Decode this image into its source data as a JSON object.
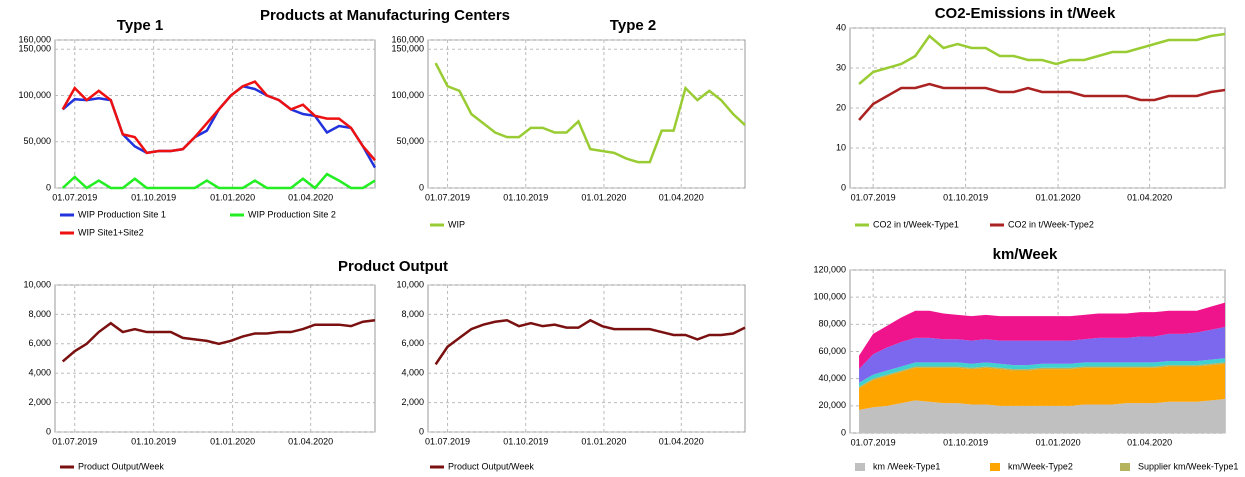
{
  "headings": [
    "Products at Manufacturing Centers",
    "Product Output"
  ],
  "chart_data": [
    {
      "type": "line",
      "title": "Type 1",
      "x": [
        "17.06.2019",
        "01.07.2019",
        "15.07.2019",
        "29.07.2019",
        "12.08.2019",
        "26.08.2019",
        "09.09.2019",
        "23.09.2019",
        "07.10.2019",
        "21.10.2019",
        "04.11.2019",
        "18.11.2019",
        "02.12.2019",
        "16.12.2019",
        "30.12.2019",
        "13.01.2020",
        "27.01.2020",
        "10.02.2020",
        "24.02.2020",
        "09.03.2020",
        "23.03.2020",
        "06.04.2020",
        "20.04.2020",
        "04.05.2020",
        "18.05.2020",
        "01.06.2020",
        "15.06.2020"
      ],
      "xlim": [
        "08.06.2019",
        "15.06.2020"
      ],
      "xticks": [
        "01.07.2019",
        "01.10.2019",
        "01.01.2020",
        "01.04.2020"
      ],
      "ylim": [
        0,
        160000
      ],
      "yticks": [
        0,
        {
          "value": 50000,
          "label": "50,000"
        },
        {
          "value": 100000,
          "label": "100,000"
        },
        {
          "value": 150000,
          "label": "150,000"
        },
        {
          "value": 160000,
          "label": "160,000"
        }
      ],
      "grid": true,
      "series": [
        {
          "name": "WIP Production Site 1",
          "color": "#2233dd",
          "values": [
            85000,
            96000,
            95000,
            97000,
            95000,
            58000,
            45000,
            38000,
            40000,
            40000,
            42000,
            55000,
            62000,
            85000,
            100000,
            110000,
            107000,
            100000,
            95000,
            85000,
            80000,
            78000,
            60000,
            67000,
            65000,
            45000,
            22000
          ]
        },
        {
          "name": "WIP Production Site 2",
          "color": "#22ee22",
          "values": [
            0,
            12000,
            0,
            8000,
            0,
            0,
            10000,
            0,
            0,
            0,
            0,
            0,
            8000,
            0,
            0,
            0,
            8000,
            0,
            0,
            0,
            10000,
            0,
            15000,
            8000,
            0,
            0,
            8000
          ]
        },
        {
          "name": "WIP Site1+Site2",
          "color": "#ee1111",
          "values": [
            85000,
            108000,
            95000,
            105000,
            95000,
            58000,
            55000,
            38000,
            40000,
            40000,
            42000,
            55000,
            70000,
            85000,
            100000,
            110000,
            115000,
            100000,
            95000,
            85000,
            90000,
            78000,
            75000,
            75000,
            65000,
            45000,
            30000
          ]
        }
      ]
    },
    {
      "type": "line",
      "title": "Type 2",
      "x": [
        "17.06.2019",
        "01.07.2019",
        "15.07.2019",
        "29.07.2019",
        "12.08.2019",
        "26.08.2019",
        "09.09.2019",
        "23.09.2019",
        "07.10.2019",
        "21.10.2019",
        "04.11.2019",
        "18.11.2019",
        "02.12.2019",
        "16.12.2019",
        "30.12.2019",
        "13.01.2020",
        "27.01.2020",
        "10.02.2020",
        "24.02.2020",
        "09.03.2020",
        "23.03.2020",
        "06.04.2020",
        "20.04.2020",
        "04.05.2020",
        "18.05.2020",
        "01.06.2020",
        "15.06.2020"
      ],
      "xlim": [
        "08.06.2019",
        "15.06.2020"
      ],
      "xticks": [
        "01.07.2019",
        "01.10.2019",
        "01.01.2020",
        "01.04.2020"
      ],
      "ylim": [
        0,
        160000
      ],
      "yticks": [
        0,
        {
          "value": 50000,
          "label": "50,000"
        },
        {
          "value": 100000,
          "label": "100,000"
        },
        {
          "value": 150000,
          "label": "150,000"
        },
        {
          "value": 160000,
          "label": "160,000"
        }
      ],
      "grid": true,
      "series": [
        {
          "name": "WIP",
          "color": "#99cc33",
          "values": [
            135000,
            110000,
            105000,
            80000,
            70000,
            60000,
            55000,
            55000,
            65000,
            65000,
            60000,
            60000,
            72000,
            42000,
            40000,
            38000,
            32000,
            28000,
            28000,
            62000,
            62000,
            108000,
            95000,
            105000,
            95000,
            80000,
            68000
          ]
        }
      ]
    },
    {
      "type": "line",
      "title": "CO2-Emissions in t/Week",
      "x": [
        "17.06.2019",
        "01.07.2019",
        "15.07.2019",
        "29.07.2019",
        "12.08.2019",
        "26.08.2019",
        "09.09.2019",
        "23.09.2019",
        "07.10.2019",
        "21.10.2019",
        "04.11.2019",
        "18.11.2019",
        "02.12.2019",
        "16.12.2019",
        "30.12.2019",
        "13.01.2020",
        "27.01.2020",
        "10.02.2020",
        "24.02.2020",
        "09.03.2020",
        "23.03.2020",
        "06.04.2020",
        "20.04.2020",
        "04.05.2020",
        "18.05.2020",
        "01.06.2020",
        "15.06.2020"
      ],
      "xlim": [
        "08.06.2019",
        "15.06.2020"
      ],
      "xticks": [
        "01.07.2019",
        "01.10.2019",
        "01.01.2020",
        "01.04.2020"
      ],
      "ylim": [
        0,
        40
      ],
      "yticks": [
        0,
        10,
        20,
        30,
        40
      ],
      "grid": true,
      "series": [
        {
          "name": "CO2 in t/Week-Type1",
          "color": "#99cc33",
          "values": [
            26,
            29,
            30,
            31,
            33,
            38,
            35,
            36,
            35,
            35,
            33,
            33,
            32,
            32,
            31,
            32,
            32,
            33,
            34,
            34,
            35,
            36,
            37,
            37,
            37,
            38,
            38.5
          ]
        },
        {
          "name": "CO2 in t/Week-Type2",
          "color": "#aa2222",
          "values": [
            17,
            21,
            23,
            25,
            25,
            26,
            25,
            25,
            25,
            25,
            24,
            24,
            25,
            24,
            24,
            24,
            23,
            23,
            23,
            23,
            22,
            22,
            23,
            23,
            23,
            24,
            24.5
          ]
        }
      ]
    },
    {
      "type": "line",
      "x": [
        "17.06.2019",
        "01.07.2019",
        "15.07.2019",
        "29.07.2019",
        "12.08.2019",
        "26.08.2019",
        "09.09.2019",
        "23.09.2019",
        "07.10.2019",
        "21.10.2019",
        "04.11.2019",
        "18.11.2019",
        "02.12.2019",
        "16.12.2019",
        "30.12.2019",
        "13.01.2020",
        "27.01.2020",
        "10.02.2020",
        "24.02.2020",
        "09.03.2020",
        "23.03.2020",
        "06.04.2020",
        "20.04.2020",
        "04.05.2020",
        "18.05.2020",
        "01.06.2020",
        "15.06.2020"
      ],
      "xlim": [
        "08.06.2019",
        "15.06.2020"
      ],
      "xticks": [
        "01.07.2019",
        "01.10.2019",
        "01.01.2020",
        "01.04.2020"
      ],
      "ylim": [
        0,
        10000
      ],
      "yticks": [
        0,
        {
          "value": 2000,
          "label": "2,000"
        },
        {
          "value": 4000,
          "label": "4,000"
        },
        {
          "value": 6000,
          "label": "6,000"
        },
        {
          "value": 8000,
          "label": "8,000"
        },
        {
          "value": 10000,
          "label": "10,000"
        }
      ],
      "grid": true,
      "series": [
        {
          "name": "Product Output/Week",
          "color": "#7a1010",
          "values": [
            4800,
            5500,
            6000,
            6800,
            7400,
            6800,
            7000,
            6800,
            6800,
            6800,
            6400,
            6300,
            6200,
            6000,
            6200,
            6500,
            6700,
            6700,
            6800,
            6800,
            7000,
            7300,
            7300,
            7300,
            7200,
            7500,
            7600
          ]
        }
      ]
    },
    {
      "type": "line",
      "x": [
        "17.06.2019",
        "01.07.2019",
        "15.07.2019",
        "29.07.2019",
        "12.08.2019",
        "26.08.2019",
        "09.09.2019",
        "23.09.2019",
        "07.10.2019",
        "21.10.2019",
        "04.11.2019",
        "18.11.2019",
        "02.12.2019",
        "16.12.2019",
        "30.12.2019",
        "13.01.2020",
        "27.01.2020",
        "10.02.2020",
        "24.02.2020",
        "09.03.2020",
        "23.03.2020",
        "06.04.2020",
        "20.04.2020",
        "04.05.2020",
        "18.05.2020",
        "01.06.2020",
        "15.06.2020"
      ],
      "xlim": [
        "08.06.2019",
        "15.06.2020"
      ],
      "xticks": [
        "01.07.2019",
        "01.10.2019",
        "01.01.2020",
        "01.04.2020"
      ],
      "ylim": [
        0,
        10000
      ],
      "yticks": [
        0,
        {
          "value": 2000,
          "label": "2,000"
        },
        {
          "value": 4000,
          "label": "4,000"
        },
        {
          "value": 6000,
          "label": "6,000"
        },
        {
          "value": 8000,
          "label": "8,000"
        },
        {
          "value": 10000,
          "label": "10,000"
        }
      ],
      "grid": true,
      "series": [
        {
          "name": "Product Output/Week",
          "color": "#7a1010",
          "values": [
            4600,
            5800,
            6400,
            7000,
            7300,
            7500,
            7600,
            7200,
            7400,
            7200,
            7300,
            7100,
            7100,
            7600,
            7200,
            7000,
            7000,
            7000,
            7000,
            6800,
            6600,
            6600,
            6300,
            6600,
            6600,
            6700,
            7100
          ]
        }
      ]
    },
    {
      "type": "stacked_area",
      "title": "km/Week",
      "x": [
        "17.06.2019",
        "01.07.2019",
        "15.07.2019",
        "29.07.2019",
        "12.08.2019",
        "26.08.2019",
        "09.09.2019",
        "23.09.2019",
        "07.10.2019",
        "21.10.2019",
        "04.11.2019",
        "18.11.2019",
        "02.12.2019",
        "16.12.2019",
        "30.12.2019",
        "13.01.2020",
        "27.01.2020",
        "10.02.2020",
        "24.02.2020",
        "09.03.2020",
        "23.03.2020",
        "06.04.2020",
        "20.04.2020",
        "04.05.2020",
        "18.05.2020",
        "01.06.2020",
        "15.06.2020"
      ],
      "xlim": [
        "08.06.2019",
        "15.06.2020"
      ],
      "xticks": [
        "01.07.2019",
        "01.10.2019",
        "01.01.2020",
        "01.04.2020"
      ],
      "ylim": [
        0,
        120000
      ],
      "yticks": [
        0,
        {
          "value": 20000,
          "label": "20,000"
        },
        {
          "value": 40000,
          "label": "40,000"
        },
        {
          "value": 60000,
          "label": "60,000"
        },
        {
          "value": 80000,
          "label": "80,000"
        },
        {
          "value": 100000,
          "label": "100,000"
        },
        {
          "value": 120000,
          "label": "120,000"
        }
      ],
      "grid": true,
      "series": [
        {
          "name": "km /Week-Type1",
          "color": "#c0c0c0",
          "values": [
            17000,
            19000,
            20000,
            22000,
            24000,
            23000,
            22000,
            22000,
            21000,
            21000,
            20000,
            20000,
            20000,
            20000,
            20000,
            20000,
            21000,
            21000,
            21000,
            22000,
            22000,
            22000,
            23000,
            23000,
            23000,
            24000,
            25000
          ]
        },
        {
          "name": "km/Week-Type2",
          "color": "#ffa500",
          "values": [
            16000,
            20000,
            22000,
            23000,
            24000,
            25000,
            26000,
            26000,
            26000,
            27000,
            27000,
            26000,
            26000,
            27000,
            27000,
            27000,
            27000,
            27000,
            27000,
            26000,
            26000,
            26000,
            26000,
            26000,
            26000,
            26000,
            26000
          ]
        },
        {
          "name": "Supplier km/Week-Type1",
          "color": "#b5b35c",
          "values": [
            1000,
            1000,
            1000,
            1000,
            1000,
            1000,
            1000,
            1000,
            1000,
            1000,
            1000,
            1000,
            1000,
            1000,
            1000,
            1000,
            1000,
            1000,
            1000,
            1000,
            1000,
            1000,
            1000,
            1000,
            1000,
            1000,
            1000
          ]
        },
        {
          "color": "#40d0d0",
          "values": [
            3000,
            3000,
            3000,
            3000,
            3000,
            3000,
            3000,
            3000,
            3000,
            3000,
            3000,
            3000,
            3000,
            3000,
            3000,
            3000,
            3000,
            3000,
            3000,
            3000,
            3000,
            3000,
            3000,
            3000,
            3000,
            3000,
            3000
          ]
        },
        {
          "color": "#7b68ee",
          "values": [
            10000,
            15000,
            17000,
            18000,
            18000,
            18000,
            17000,
            17000,
            17000,
            17000,
            17000,
            18000,
            18000,
            17000,
            17000,
            17000,
            17000,
            18000,
            18000,
            18000,
            19000,
            19000,
            20000,
            20000,
            21000,
            22000,
            23000
          ]
        },
        {
          "color": "#f0148c",
          "values": [
            10000,
            15000,
            16000,
            18000,
            20000,
            20000,
            19000,
            18000,
            18000,
            18000,
            18000,
            18000,
            18000,
            18000,
            18000,
            18000,
            18000,
            18000,
            18000,
            18000,
            18000,
            18000,
            17000,
            17000,
            16000,
            17000,
            18000
          ]
        }
      ]
    }
  ]
}
